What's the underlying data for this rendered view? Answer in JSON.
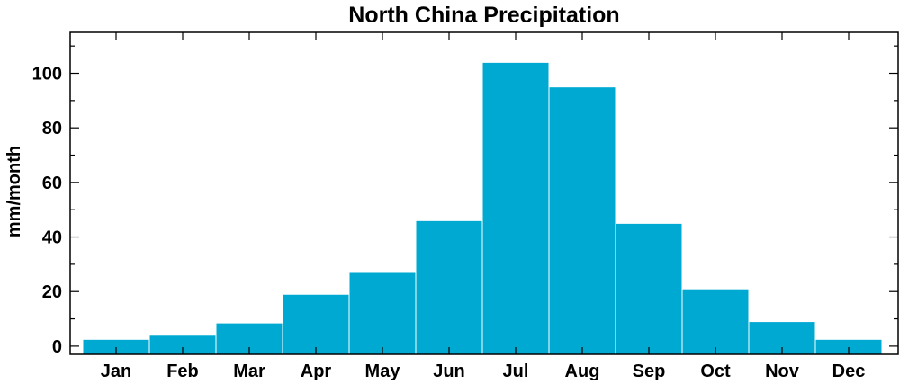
{
  "chart_data": {
    "type": "bar",
    "title": "North China Precipitation",
    "xlabel": "",
    "ylabel": "mm/month",
    "categories": [
      "Jan",
      "Feb",
      "Mar",
      "Apr",
      "May",
      "Jun",
      "Jul",
      "Aug",
      "Sep",
      "Oct",
      "Nov",
      "Dec"
    ],
    "values": [
      2.5,
      4,
      8.5,
      19,
      27,
      46,
      104,
      95,
      45,
      21,
      9,
      2.5
    ],
    "ylim": [
      -3,
      115
    ],
    "yticks": [
      0,
      20,
      40,
      60,
      80,
      100
    ],
    "ytick_labels": [
      "0",
      "20",
      "40",
      "60",
      "80",
      "100"
    ],
    "bar_color": "#00a9d2",
    "grid": false,
    "legend": "none"
  }
}
